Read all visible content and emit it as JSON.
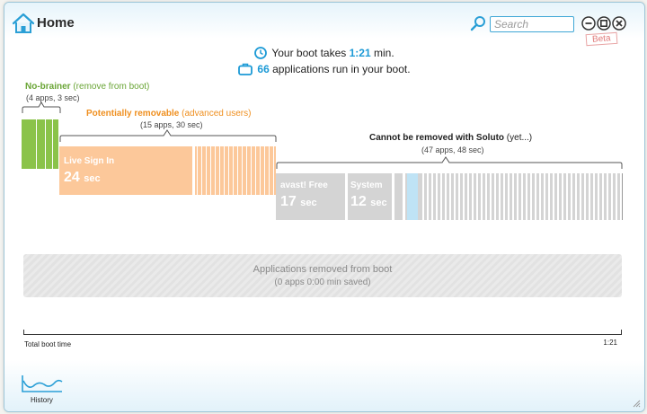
{
  "window": {
    "title": "Home",
    "beta_badge": "Beta"
  },
  "search": {
    "placeholder": "Search",
    "value": ""
  },
  "icons": {
    "home": "home-icon",
    "search": "search-icon",
    "minimize": "minimize-icon",
    "maximize": "maximize-icon",
    "close": "close-icon",
    "clock": "clock-icon",
    "briefcase": "briefcase-icon",
    "history": "history-chart-icon",
    "resize": "resize-grip-icon"
  },
  "summary": {
    "boot_prefix": "Your boot takes",
    "boot_time": "1:21",
    "boot_suffix": "min.",
    "apps_count": "66",
    "apps_suffix": "applications run in your boot."
  },
  "categories": {
    "no_brainer": {
      "title": "No-brainer",
      "note": "(remove from boot)",
      "sub": "(4 apps, 3 sec)",
      "color": "#8bc34a"
    },
    "potentially": {
      "title": "Potentially removable",
      "note": "(advanced users)",
      "sub": "(15 apps, 30 sec)",
      "color": "#f5a623"
    },
    "cannot": {
      "title": "Cannot be removed with Soluto",
      "note": "(yet...)",
      "sub": "(47 apps, 48 sec)",
      "color": "#d4d4d4"
    }
  },
  "apps": {
    "live_sign_in": {
      "name": "Live Sign In",
      "time": "24",
      "unit": "sec"
    },
    "avast": {
      "name": "avast! Free",
      "time": "17",
      "unit": "sec"
    },
    "system": {
      "name": "System",
      "time": "12",
      "unit": "sec"
    }
  },
  "removed": {
    "title": "Applications removed from boot",
    "sub": "(0 apps 0:00 min saved)"
  },
  "timeline": {
    "label": "Total boot time",
    "end": "1:21"
  },
  "footer": {
    "history_label": "History"
  },
  "colors": {
    "accent": "#1c9ad6",
    "green": "#8bc34a",
    "orange": "#f5a623",
    "orange_light": "#fcc89a",
    "gray": "#d4d4d4",
    "light_blue": "#bfe3f5"
  }
}
